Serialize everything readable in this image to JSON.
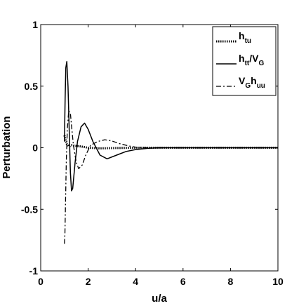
{
  "chart_data": {
    "type": "line",
    "title": "",
    "xlabel": "u/a",
    "ylabel": "Perturbation",
    "xlim": [
      0,
      10
    ],
    "ylim": [
      -1,
      1
    ],
    "xticks": [
      "0",
      "2",
      "4",
      "6",
      "8",
      "10"
    ],
    "yticks": [
      "1",
      "0.5",
      "0",
      "-0.5",
      "-1"
    ],
    "grid": false,
    "legend_position": "top-right",
    "series": [
      {
        "name": "h_tu",
        "legend_main": "h",
        "legend_sub": "tu",
        "style": "dotted",
        "x": [
          1.0,
          1.05,
          1.1,
          1.2,
          1.3,
          1.5,
          1.7,
          2.0,
          2.5,
          3.0,
          4.0,
          5.0,
          6.0,
          7.0,
          8.0,
          9.0,
          10.0
        ],
        "y": [
          0.1,
          0.06,
          0.03,
          0.01,
          0.02,
          0.015,
          0.01,
          0.0,
          -0.005,
          -0.003,
          0.0,
          0.0,
          0.0,
          0.0,
          0.0,
          0.0,
          0.0
        ]
      },
      {
        "name": "h_tt/V_G",
        "legend_main": "h",
        "legend_sub": "tt",
        "legend_rest": "/V",
        "legend_sub2": "G",
        "style": "solid",
        "x": [
          1.0,
          1.03,
          1.06,
          1.1,
          1.15,
          1.2,
          1.25,
          1.3,
          1.35,
          1.45,
          1.55,
          1.7,
          1.85,
          2.0,
          2.2,
          2.5,
          2.8,
          3.2,
          3.6,
          4.0,
          4.5,
          5.0,
          5.5,
          6.0,
          7.0,
          8.0,
          10.0
        ],
        "y": [
          0.05,
          0.4,
          0.65,
          0.7,
          0.5,
          0.15,
          -0.2,
          -0.35,
          -0.33,
          -0.12,
          0.05,
          0.17,
          0.2,
          0.15,
          0.05,
          -0.06,
          -0.09,
          -0.06,
          -0.03,
          -0.015,
          -0.005,
          0.0,
          0.0,
          0.0,
          0.0,
          0.0,
          0.0
        ]
      },
      {
        "name": "V_G h_uu",
        "legend_main": "V",
        "legend_sub": "G",
        "legend_rest": "h",
        "legend_sub2": "uu",
        "style": "dashdot",
        "x": [
          1.0,
          1.02,
          1.05,
          1.08,
          1.12,
          1.18,
          1.25,
          1.3,
          1.38,
          1.5,
          1.6,
          1.75,
          1.9,
          2.1,
          2.4,
          2.7,
          3.0,
          3.3,
          3.7,
          4.0,
          4.5,
          5.0,
          6.0,
          7.0,
          10.0
        ],
        "y": [
          -0.78,
          -0.7,
          -0.4,
          -0.1,
          0.15,
          0.3,
          0.28,
          0.18,
          0.02,
          -0.12,
          -0.17,
          -0.14,
          -0.06,
          0.02,
          0.05,
          0.065,
          0.055,
          0.035,
          0.015,
          0.005,
          0.0,
          0.0,
          0.0,
          0.0,
          0.0
        ]
      }
    ]
  }
}
